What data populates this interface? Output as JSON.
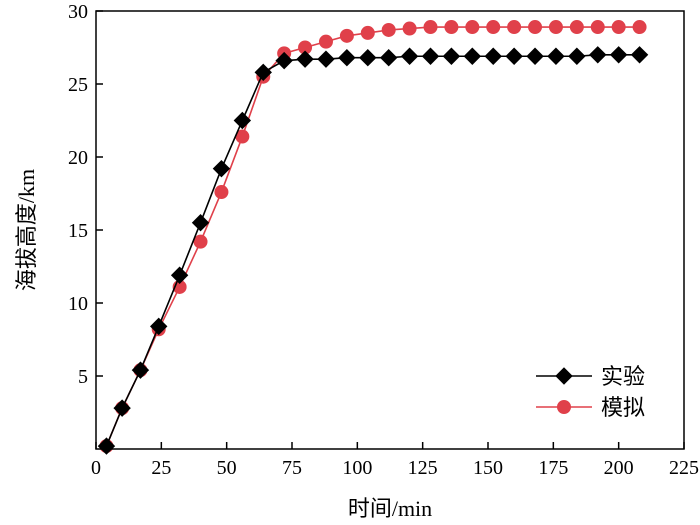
{
  "chart_data": {
    "type": "line",
    "xlabel": "时间/min",
    "ylabel": "海拔高度/km",
    "xlim": [
      0,
      225
    ],
    "ylim": [
      0,
      30
    ],
    "xticks": [
      0,
      25,
      50,
      75,
      100,
      125,
      150,
      175,
      200,
      225
    ],
    "yticks": [
      5,
      10,
      15,
      20,
      25,
      30
    ],
    "grid": false,
    "legend_position": "bottom-right",
    "series": [
      {
        "name": "实验",
        "marker": "diamond",
        "color": "#000000",
        "x": [
          4,
          10,
          17,
          24,
          32,
          40,
          48,
          56,
          64,
          72,
          80,
          88,
          96,
          104,
          112,
          120,
          128,
          136,
          144,
          152,
          160,
          168,
          176,
          184,
          192,
          200,
          208
        ],
        "y": [
          0.2,
          2.8,
          5.4,
          8.4,
          11.9,
          15.5,
          19.2,
          22.5,
          25.8,
          26.6,
          26.7,
          26.7,
          26.8,
          26.8,
          26.8,
          26.9,
          26.9,
          26.9,
          26.9,
          26.9,
          26.9,
          26.9,
          26.9,
          26.9,
          27.0,
          27.0,
          27.0
        ]
      },
      {
        "name": "模拟",
        "marker": "circle",
        "color": "#e0404a",
        "x": [
          4,
          10,
          17,
          24,
          32,
          40,
          48,
          56,
          64,
          72,
          80,
          88,
          96,
          104,
          112,
          120,
          128,
          136,
          144,
          152,
          160,
          168,
          176,
          184,
          192,
          200,
          208
        ],
        "y": [
          0.2,
          2.8,
          5.4,
          8.2,
          11.1,
          14.2,
          17.6,
          21.4,
          25.5,
          27.1,
          27.5,
          27.9,
          28.3,
          28.5,
          28.7,
          28.8,
          28.9,
          28.9,
          28.9,
          28.9,
          28.9,
          28.9,
          28.9,
          28.9,
          28.9,
          28.9,
          28.9
        ]
      }
    ]
  }
}
